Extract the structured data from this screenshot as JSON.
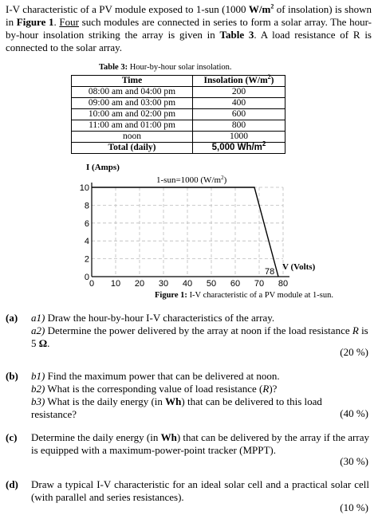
{
  "intro": {
    "p1": "I-V characteristic of a PV module exposed to 1-sun (1000 ",
    "p1_bold": "W/m",
    "p1_sup": "2",
    "p1_end": " of insolation) is shown in ",
    "fig_ref": "Figure 1",
    "p2": ". ",
    "four": "Four",
    "p3": " such modules are connected in series to form a solar array. The hour-by-hour insolation striking the array is given in ",
    "table_ref": "Table 3",
    "p4": ". A load resistance of R is connected to the solar array."
  },
  "table": {
    "caption_bold": "Table 3:",
    "caption": " Hour-by-hour solar insolation.",
    "col_time": "Time",
    "col_ins": "Insolation (W/m",
    "col_ins_sup": "2",
    "col_ins_end": ")",
    "rows": [
      {
        "time": "08:00 am and 04:00 pm",
        "value": "200"
      },
      {
        "time": "09:00 am and 03:00 pm",
        "value": "400"
      },
      {
        "time": "10:00 am and 02:00 pm",
        "value": "600"
      },
      {
        "time": "11:00 am and 01:00 pm",
        "value": "800"
      },
      {
        "time": "noon",
        "value": "1000"
      }
    ],
    "total_label": "Total (daily)",
    "total_value": "5,000 Wh/m",
    "total_sup": "2"
  },
  "chart_data": {
    "type": "line",
    "title": "",
    "xlabel": "V (Volts)",
    "ylabel": "I (Amps)",
    "xlim": [
      0,
      80
    ],
    "ylim": [
      0,
      10
    ],
    "x_ticks": [
      "0",
      "10",
      "20",
      "30",
      "40",
      "50",
      "60",
      "70",
      "80"
    ],
    "y_ticks": [
      "0",
      "2",
      "4",
      "6",
      "8",
      "10"
    ],
    "grid": true,
    "series": [
      {
        "name": "1-sun=1000 (W/m",
        "x": [
          0,
          68,
          78
        ],
        "y": [
          10,
          10,
          0
        ]
      }
    ],
    "series_label_sup": "2",
    "series_label_end": ")",
    "annotation": "78",
    "caption_bold": "Figure 1:",
    "caption": " I-V characteristic of a PV module at 1-sun."
  },
  "questions": [
    {
      "label": "(a)",
      "lines": [
        {
          "pre": "",
          "ital": "a1)",
          "text": " Draw the hour-by-hour I-V characteristics of the array."
        },
        {
          "pre": "",
          "ital": "a2)",
          "text": " Determine the power delivered by the array at noon if the load resistance ",
          "ital2": "R",
          "text2": " is"
        },
        {
          "pre": "",
          "ital": "",
          "text": "5 ",
          "bold": "Ω",
          "text2": "."
        }
      ],
      "pct": "(20 %)"
    },
    {
      "label": "(b)",
      "lines": [
        {
          "ital": "b1)",
          "text": " Find the maximum power that can be delivered at noon."
        },
        {
          "ital": "b2)",
          "text": " What is the corresponding value of load resistance (",
          "ital2": "R",
          "text2": ")?"
        },
        {
          "ital": "b3)",
          "text": " What is the daily energy (in ",
          "bold": "Wh",
          "text2": ") that can be delivered to this load resistance?"
        }
      ],
      "pct": "(40 %)"
    },
    {
      "label": "(c)",
      "text1": "Determine the daily energy (in ",
      "bold": "Wh",
      "text2": ") that can be delivered by the array if the array is equipped with a maximum-power-point tracker (MPPT).",
      "pct": "(30 %)"
    },
    {
      "label": "(d)",
      "text1": "Draw a typical I-V characteristic for an ideal solar cell and a practical solar cell (with parallel and series resistances).",
      "pct": "(10 %)"
    }
  ]
}
